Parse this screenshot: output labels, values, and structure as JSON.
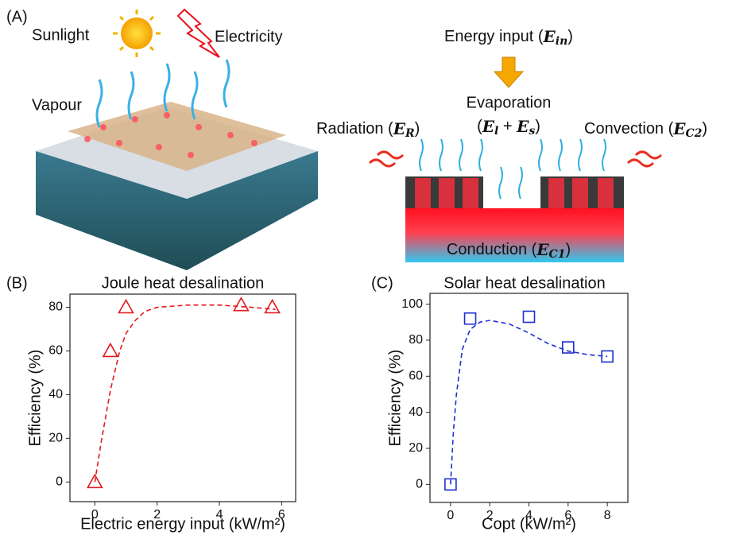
{
  "panel_a": {
    "label": "(A)",
    "sunlight": "Sunlight",
    "electricity": "Electricity",
    "vapour": "Vapour",
    "energy_input": [
      "Energy input (",
      "E",
      "in",
      ")"
    ],
    "evaporation": "Evaporation",
    "evaporation_terms": [
      "(",
      "E",
      "l",
      " + ",
      "E",
      "s",
      ")"
    ],
    "radiation": [
      "Radiation (",
      "E",
      "R",
      ")"
    ],
    "convection": [
      "Convection (",
      "E",
      "C2",
      ")"
    ],
    "conduction": [
      "Conduction (",
      "E",
      "C1",
      ")"
    ]
  },
  "chart_data": [
    {
      "type": "scatter",
      "panel": "(B)",
      "title": "Joule heat desalination",
      "xlabel": "Electric energy input (kW/m²)",
      "ylabel": "Efficiency (%)",
      "xlim": [
        -0.8,
        6.45
      ],
      "ylim": [
        -9,
        86
      ],
      "xticks": [
        0,
        2,
        4,
        6
      ],
      "yticks": [
        0,
        20,
        40,
        60,
        80
      ],
      "series": [
        {
          "color": "#e31a1c",
          "marker": "triangle",
          "x": [
            0,
            0.5,
            1,
            4.7,
            5.7
          ],
          "values": [
            0,
            60,
            80,
            81,
            80
          ]
        }
      ],
      "fit": {
        "color": "#e31a1c",
        "x": [
          0,
          0.2,
          0.5,
          0.8,
          1,
          1.3,
          1.6,
          2,
          3,
          4,
          5,
          5.8
        ],
        "values": [
          0,
          18,
          42,
          60,
          68,
          74,
          78,
          80,
          81,
          81,
          80,
          79
        ]
      }
    },
    {
      "type": "scatter",
      "panel": "(C)",
      "title": "Solar heat desalination",
      "xlabel": "Copt (kW/m²)",
      "ylabel": "Efficiency (%)",
      "xlim": [
        -1.05,
        9.05
      ],
      "ylim": [
        -10,
        106
      ],
      "xticks": [
        0,
        2,
        4,
        6,
        8
      ],
      "yticks": [
        0,
        20,
        40,
        60,
        80,
        100
      ],
      "series": [
        {
          "color": "#1f2fd0",
          "marker": "square",
          "x": [
            0,
            1,
            4,
            6,
            8
          ],
          "values": [
            0,
            92,
            93,
            76,
            71
          ]
        }
      ],
      "fit": {
        "color": "#1f2fd0",
        "x": [
          0,
          0.15,
          0.3,
          0.6,
          1,
          1.5,
          2,
          3,
          4,
          5,
          6,
          7,
          8
        ],
        "values": [
          0,
          30,
          50,
          75,
          86,
          90,
          91,
          89,
          84,
          78,
          74,
          72,
          71
        ]
      }
    }
  ]
}
